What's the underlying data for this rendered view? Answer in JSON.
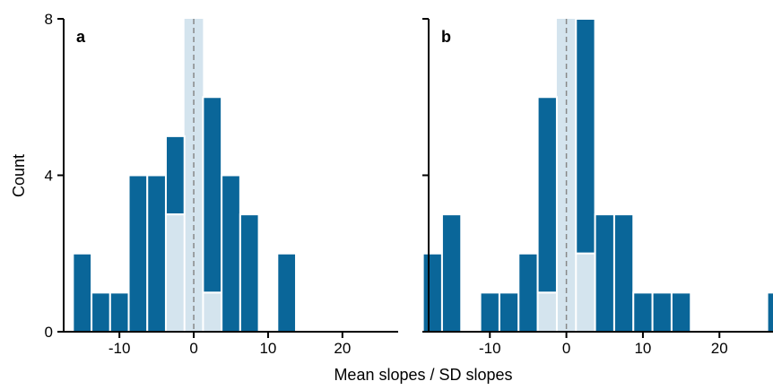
{
  "chart_data": {
    "type": "bar",
    "ylabel": "Count",
    "xlabel": "Mean slopes / SD slopes",
    "ylim": [
      0,
      8
    ],
    "yticks": [
      0,
      4,
      8
    ],
    "xticks": [
      -10,
      0,
      10,
      20
    ],
    "bin_width": 2.5,
    "colors": {
      "bar": "#0a6699",
      "highlight": "#d4e4ee",
      "band": "#d4e4ee",
      "zero_line": "#888888"
    },
    "panels": [
      {
        "label": "a",
        "xlim": [
          -17.5,
          27.5
        ],
        "bins": [
          {
            "x": -15,
            "count": 2,
            "highlight": 0
          },
          {
            "x": -12.5,
            "count": 1,
            "highlight": 0
          },
          {
            "x": -10,
            "count": 1,
            "highlight": 0
          },
          {
            "x": -7.5,
            "count": 4,
            "highlight": 0
          },
          {
            "x": -5,
            "count": 4,
            "highlight": 0
          },
          {
            "x": -2.5,
            "count": 5,
            "highlight": 3
          },
          {
            "x": 2.5,
            "count": 6,
            "highlight": 1
          },
          {
            "x": 5,
            "count": 4,
            "highlight": 0
          },
          {
            "x": 7.5,
            "count": 3,
            "highlight": 0
          },
          {
            "x": 12.5,
            "count": 2,
            "highlight": 0
          }
        ]
      },
      {
        "label": "b",
        "xlim": [
          -18,
          27
        ],
        "bins": [
          {
            "x": -17.5,
            "count": 2,
            "highlight": 0
          },
          {
            "x": -15,
            "count": 3,
            "highlight": 0
          },
          {
            "x": -10,
            "count": 1,
            "highlight": 0
          },
          {
            "x": -7.5,
            "count": 1,
            "highlight": 0
          },
          {
            "x": -5,
            "count": 2,
            "highlight": 0
          },
          {
            "x": -2.5,
            "count": 6,
            "highlight": 1
          },
          {
            "x": 2.5,
            "count": 8,
            "highlight": 2
          },
          {
            "x": 5,
            "count": 3,
            "highlight": 0
          },
          {
            "x": 7.5,
            "count": 3,
            "highlight": 0
          },
          {
            "x": 10,
            "count": 1,
            "highlight": 0
          },
          {
            "x": 12.5,
            "count": 1,
            "highlight": 0
          },
          {
            "x": 15,
            "count": 1,
            "highlight": 0
          },
          {
            "x": 27.5,
            "count": 1,
            "highlight": 0
          }
        ]
      }
    ]
  }
}
